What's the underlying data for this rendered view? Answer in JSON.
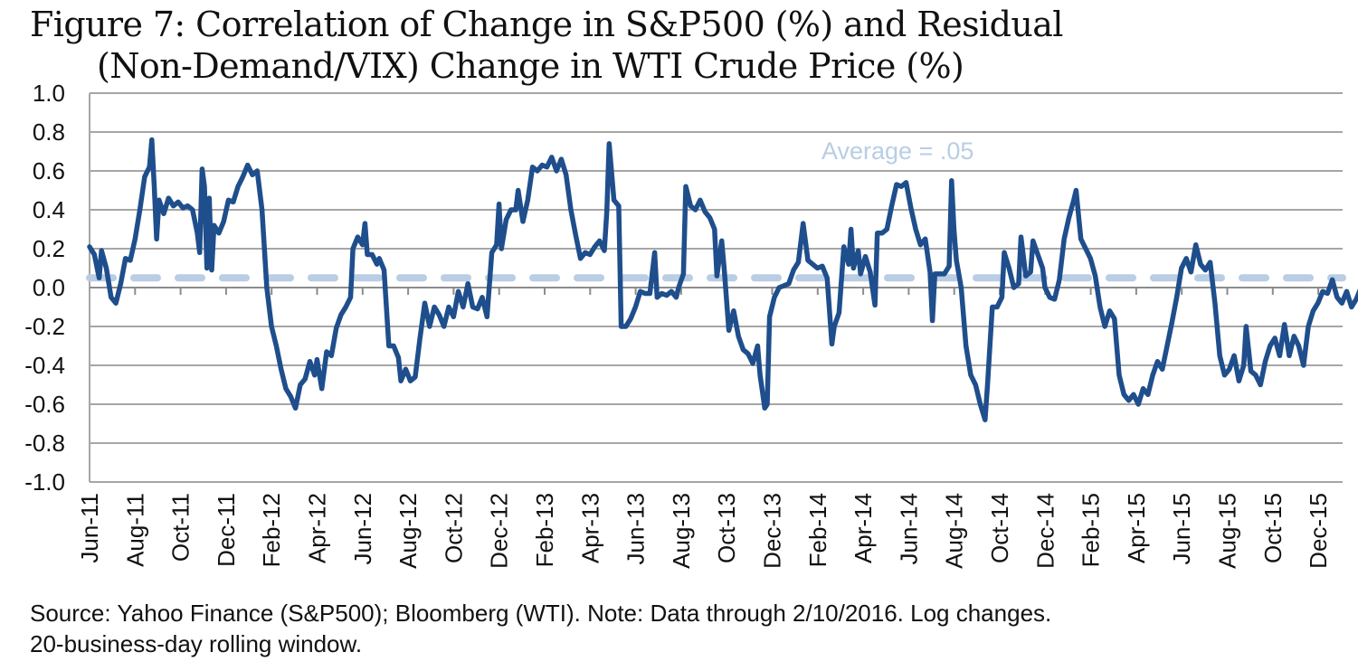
{
  "chart_data": {
    "type": "line",
    "title": "Figure 7: Correlation of Change in S&P500 (%) and Residual",
    "title_line2": "(Non-Demand/VIX) Change in WTI Crude Price (%)",
    "xlabel": "",
    "ylabel": "",
    "ylim": [
      -1.0,
      1.0
    ],
    "yticks": [
      "1.0",
      "0.8",
      "0.6",
      "0.4",
      "0.2",
      "0.0",
      "-0.2",
      "-0.4",
      "-0.6",
      "-0.8",
      "-1.0"
    ],
    "ytick_values": [
      1.0,
      0.8,
      0.6,
      0.4,
      0.2,
      0.0,
      -0.2,
      -0.4,
      -0.6,
      -0.8,
      -1.0
    ],
    "x_categories": [
      "Jun-11",
      "Aug-11",
      "Oct-11",
      "Dec-11",
      "Feb-12",
      "Apr-12",
      "Jun-12",
      "Aug-12",
      "Oct-12",
      "Dec-12",
      "Feb-13",
      "Apr-13",
      "Jun-13",
      "Aug-13",
      "Oct-13",
      "Dec-13",
      "Feb-14",
      "Apr-14",
      "Jun-14",
      "Aug-14",
      "Oct-14",
      "Dec-14",
      "Feb-15",
      "Apr-15",
      "Jun-15",
      "Aug-15",
      "Oct-15",
      "Dec-15"
    ],
    "x_unit": "months since Jun-2011",
    "x_range": [
      0,
      56.3
    ],
    "grid": "horizontal",
    "colors": {
      "series": "#1f4e8c",
      "average": "#b9cde4",
      "grid": "#a6a6a6"
    },
    "annotation": {
      "text": "Average  = .05",
      "value": 0.05
    },
    "series": [
      {
        "name": "Rolling correlation",
        "points": [
          [
            0.0,
            0.21
          ],
          [
            0.2,
            0.17
          ],
          [
            0.4,
            0.05
          ],
          [
            0.5,
            0.19
          ],
          [
            0.7,
            0.1
          ],
          [
            0.9,
            -0.05
          ],
          [
            1.1,
            -0.08
          ],
          [
            1.3,
            0.02
          ],
          [
            1.5,
            0.15
          ],
          [
            1.7,
            0.14
          ],
          [
            1.9,
            0.25
          ],
          [
            2.1,
            0.4
          ],
          [
            2.3,
            0.57
          ],
          [
            2.5,
            0.62
          ],
          [
            2.6,
            0.76
          ],
          [
            2.7,
            0.52
          ],
          [
            2.8,
            0.25
          ],
          [
            2.9,
            0.45
          ],
          [
            3.1,
            0.38
          ],
          [
            3.3,
            0.46
          ],
          [
            3.5,
            0.42
          ],
          [
            3.7,
            0.44
          ],
          [
            3.9,
            0.41
          ],
          [
            4.1,
            0.42
          ],
          [
            4.3,
            0.4
          ],
          [
            4.5,
            0.28
          ],
          [
            4.6,
            0.18
          ],
          [
            4.7,
            0.61
          ],
          [
            4.8,
            0.52
          ],
          [
            4.9,
            0.1
          ],
          [
            5.0,
            0.46
          ],
          [
            5.1,
            0.09
          ],
          [
            5.2,
            0.32
          ],
          [
            5.4,
            0.28
          ],
          [
            5.6,
            0.34
          ],
          [
            5.8,
            0.45
          ],
          [
            6.0,
            0.44
          ],
          [
            6.2,
            0.52
          ],
          [
            6.4,
            0.57
          ],
          [
            6.6,
            0.63
          ],
          [
            6.8,
            0.58
          ],
          [
            7.0,
            0.6
          ],
          [
            7.2,
            0.4
          ],
          [
            7.4,
            0.0
          ],
          [
            7.6,
            -0.2
          ],
          [
            7.8,
            -0.3
          ],
          [
            8.0,
            -0.42
          ],
          [
            8.2,
            -0.52
          ],
          [
            8.4,
            -0.56
          ],
          [
            8.6,
            -0.62
          ],
          [
            8.8,
            -0.5
          ],
          [
            9.0,
            -0.47
          ],
          [
            9.2,
            -0.38
          ],
          [
            9.4,
            -0.45
          ],
          [
            9.5,
            -0.37
          ],
          [
            9.7,
            -0.52
          ],
          [
            9.9,
            -0.33
          ],
          [
            10.1,
            -0.35
          ],
          [
            10.3,
            -0.21
          ],
          [
            10.5,
            -0.14
          ],
          [
            10.7,
            -0.1
          ],
          [
            10.9,
            -0.05
          ],
          [
            11.0,
            0.2
          ],
          [
            11.2,
            0.26
          ],
          [
            11.4,
            0.22
          ],
          [
            11.5,
            0.33
          ],
          [
            11.6,
            0.17
          ],
          [
            11.8,
            0.17
          ],
          [
            12.0,
            0.12
          ],
          [
            12.1,
            0.15
          ],
          [
            12.3,
            0.09
          ],
          [
            12.5,
            -0.3
          ],
          [
            12.7,
            -0.3
          ],
          [
            12.9,
            -0.36
          ],
          [
            13.0,
            -0.48
          ],
          [
            13.2,
            -0.42
          ],
          [
            13.4,
            -0.48
          ],
          [
            13.6,
            -0.46
          ],
          [
            13.8,
            -0.26
          ],
          [
            14.0,
            -0.08
          ],
          [
            14.2,
            -0.2
          ],
          [
            14.4,
            -0.1
          ],
          [
            14.6,
            -0.14
          ],
          [
            14.8,
            -0.2
          ],
          [
            15.0,
            -0.1
          ],
          [
            15.2,
            -0.15
          ],
          [
            15.4,
            -0.02
          ],
          [
            15.6,
            -0.1
          ],
          [
            15.8,
            0.02
          ],
          [
            16.0,
            -0.1
          ],
          [
            16.2,
            -0.11
          ],
          [
            16.4,
            -0.05
          ],
          [
            16.6,
            -0.15
          ],
          [
            16.8,
            0.18
          ],
          [
            17.0,
            0.22
          ],
          [
            17.1,
            0.43
          ],
          [
            17.2,
            0.2
          ],
          [
            17.4,
            0.35
          ],
          [
            17.6,
            0.4
          ],
          [
            17.8,
            0.4
          ],
          [
            17.9,
            0.5
          ],
          [
            18.1,
            0.34
          ],
          [
            18.3,
            0.45
          ],
          [
            18.5,
            0.62
          ],
          [
            18.7,
            0.6
          ],
          [
            18.9,
            0.63
          ],
          [
            19.1,
            0.62
          ],
          [
            19.3,
            0.67
          ],
          [
            19.5,
            0.6
          ],
          [
            19.7,
            0.66
          ],
          [
            19.9,
            0.58
          ],
          [
            20.1,
            0.4
          ],
          [
            20.3,
            0.27
          ],
          [
            20.5,
            0.15
          ],
          [
            20.7,
            0.18
          ],
          [
            20.9,
            0.17
          ],
          [
            21.1,
            0.21
          ],
          [
            21.3,
            0.24
          ],
          [
            21.5,
            0.19
          ],
          [
            21.6,
            0.39
          ],
          [
            21.7,
            0.74
          ],
          [
            21.9,
            0.45
          ],
          [
            22.1,
            0.42
          ],
          [
            22.2,
            -0.2
          ],
          [
            22.4,
            -0.2
          ],
          [
            22.6,
            -0.16
          ],
          [
            22.8,
            -0.1
          ],
          [
            23.0,
            -0.02
          ],
          [
            23.2,
            -0.03
          ],
          [
            23.4,
            -0.03
          ],
          [
            23.6,
            0.18
          ],
          [
            23.7,
            -0.05
          ],
          [
            23.9,
            -0.03
          ],
          [
            24.1,
            -0.04
          ],
          [
            24.3,
            -0.02
          ],
          [
            24.5,
            -0.05
          ],
          [
            24.6,
            0.0
          ],
          [
            24.8,
            0.07
          ],
          [
            24.9,
            0.52
          ],
          [
            25.1,
            0.42
          ],
          [
            25.3,
            0.4
          ],
          [
            25.5,
            0.45
          ],
          [
            25.7,
            0.39
          ],
          [
            25.9,
            0.36
          ],
          [
            26.1,
            0.3
          ],
          [
            26.2,
            0.06
          ],
          [
            26.4,
            0.24
          ],
          [
            26.5,
            0.1
          ],
          [
            26.7,
            -0.22
          ],
          [
            26.9,
            -0.12
          ],
          [
            27.1,
            -0.25
          ],
          [
            27.3,
            -0.32
          ],
          [
            27.5,
            -0.34
          ],
          [
            27.7,
            -0.39
          ],
          [
            27.9,
            -0.3
          ],
          [
            28.0,
            -0.45
          ],
          [
            28.2,
            -0.62
          ],
          [
            28.3,
            -0.6
          ],
          [
            28.4,
            -0.15
          ],
          [
            28.6,
            -0.05
          ],
          [
            28.8,
            0.0
          ],
          [
            29.0,
            0.01
          ],
          [
            29.2,
            0.02
          ],
          [
            29.4,
            0.09
          ],
          [
            29.6,
            0.13
          ],
          [
            29.8,
            0.33
          ],
          [
            30.0,
            0.14
          ],
          [
            30.2,
            0.12
          ],
          [
            30.4,
            0.1
          ],
          [
            30.6,
            0.11
          ],
          [
            30.8,
            0.05
          ],
          [
            31.0,
            -0.29
          ],
          [
            31.1,
            -0.2
          ],
          [
            31.3,
            -0.13
          ],
          [
            31.5,
            0.21
          ],
          [
            31.7,
            0.12
          ],
          [
            31.8,
            0.3
          ],
          [
            31.9,
            0.1
          ],
          [
            32.1,
            0.19
          ],
          [
            32.2,
            0.07
          ],
          [
            32.4,
            0.16
          ],
          [
            32.6,
            0.08
          ],
          [
            32.8,
            -0.09
          ],
          [
            32.9,
            0.28
          ],
          [
            33.1,
            0.28
          ],
          [
            33.3,
            0.3
          ],
          [
            33.5,
            0.42
          ],
          [
            33.7,
            0.53
          ],
          [
            33.9,
            0.52
          ],
          [
            34.1,
            0.54
          ],
          [
            34.3,
            0.41
          ],
          [
            34.5,
            0.3
          ],
          [
            34.7,
            0.22
          ],
          [
            34.9,
            0.25
          ],
          [
            35.1,
            0.08
          ],
          [
            35.2,
            -0.17
          ],
          [
            35.3,
            0.07
          ],
          [
            35.5,
            0.07
          ],
          [
            35.7,
            0.07
          ],
          [
            35.9,
            0.11
          ],
          [
            36.0,
            0.55
          ],
          [
            36.1,
            0.3
          ],
          [
            36.2,
            0.14
          ],
          [
            36.4,
            0.0
          ],
          [
            36.6,
            -0.3
          ],
          [
            36.8,
            -0.45
          ],
          [
            37.0,
            -0.5
          ],
          [
            37.2,
            -0.6
          ],
          [
            37.4,
            -0.68
          ],
          [
            37.5,
            -0.5
          ],
          [
            37.7,
            -0.1
          ],
          [
            37.9,
            -0.1
          ],
          [
            38.1,
            -0.05
          ],
          [
            38.2,
            0.18
          ],
          [
            38.4,
            0.1
          ],
          [
            38.6,
            0.0
          ],
          [
            38.8,
            0.02
          ],
          [
            38.9,
            0.26
          ],
          [
            39.1,
            0.06
          ],
          [
            39.3,
            0.08
          ],
          [
            39.4,
            0.24
          ],
          [
            39.6,
            0.17
          ],
          [
            39.8,
            0.1
          ],
          [
            39.9,
            0.0
          ],
          [
            40.1,
            -0.05
          ],
          [
            40.3,
            -0.06
          ],
          [
            40.5,
            0.04
          ],
          [
            40.7,
            0.25
          ],
          [
            40.9,
            0.36
          ],
          [
            41.1,
            0.45
          ],
          [
            41.2,
            0.5
          ],
          [
            41.4,
            0.25
          ],
          [
            41.6,
            0.2
          ],
          [
            41.8,
            0.15
          ],
          [
            42.0,
            0.06
          ],
          [
            42.2,
            -0.1
          ],
          [
            42.4,
            -0.2
          ],
          [
            42.6,
            -0.12
          ],
          [
            42.8,
            -0.16
          ],
          [
            43.0,
            -0.45
          ],
          [
            43.2,
            -0.55
          ],
          [
            43.4,
            -0.58
          ],
          [
            43.6,
            -0.55
          ],
          [
            43.8,
            -0.6
          ],
          [
            44.0,
            -0.52
          ],
          [
            44.2,
            -0.55
          ],
          [
            44.4,
            -0.45
          ],
          [
            44.6,
            -0.38
          ],
          [
            44.8,
            -0.42
          ],
          [
            45.0,
            -0.3
          ],
          [
            45.2,
            -0.18
          ],
          [
            45.4,
            -0.05
          ],
          [
            45.6,
            0.1
          ],
          [
            45.8,
            0.15
          ],
          [
            46.0,
            0.08
          ],
          [
            46.2,
            0.22
          ],
          [
            46.4,
            0.12
          ],
          [
            46.6,
            0.09
          ],
          [
            46.8,
            0.13
          ],
          [
            47.0,
            -0.08
          ],
          [
            47.2,
            -0.35
          ],
          [
            47.4,
            -0.45
          ],
          [
            47.6,
            -0.42
          ],
          [
            47.8,
            -0.35
          ],
          [
            48.0,
            -0.48
          ],
          [
            48.2,
            -0.4
          ],
          [
            48.3,
            -0.2
          ],
          [
            48.5,
            -0.43
          ],
          [
            48.7,
            -0.45
          ],
          [
            48.9,
            -0.5
          ],
          [
            49.1,
            -0.38
          ],
          [
            49.3,
            -0.3
          ],
          [
            49.5,
            -0.26
          ],
          [
            49.7,
            -0.35
          ],
          [
            49.9,
            -0.19
          ],
          [
            50.1,
            -0.35
          ],
          [
            50.3,
            -0.25
          ],
          [
            50.5,
            -0.3
          ],
          [
            50.7,
            -0.4
          ],
          [
            50.9,
            -0.2
          ],
          [
            51.1,
            -0.12
          ],
          [
            51.3,
            -0.08
          ],
          [
            51.5,
            -0.02
          ],
          [
            51.7,
            -0.03
          ],
          [
            51.9,
            0.04
          ],
          [
            52.1,
            -0.05
          ],
          [
            52.3,
            -0.08
          ],
          [
            52.5,
            -0.02
          ],
          [
            52.7,
            -0.1
          ],
          [
            52.9,
            -0.06
          ],
          [
            53.1,
            0.0
          ],
          [
            53.3,
            0.05
          ],
          [
            53.5,
            0.18
          ]
        ]
      }
    ]
  },
  "source_note_line1": "Source: Yahoo Finance (S&P500); Bloomberg (WTI). Note: Data through 2/10/2016. Log changes.",
  "source_note_line2": "20-business-day rolling window."
}
